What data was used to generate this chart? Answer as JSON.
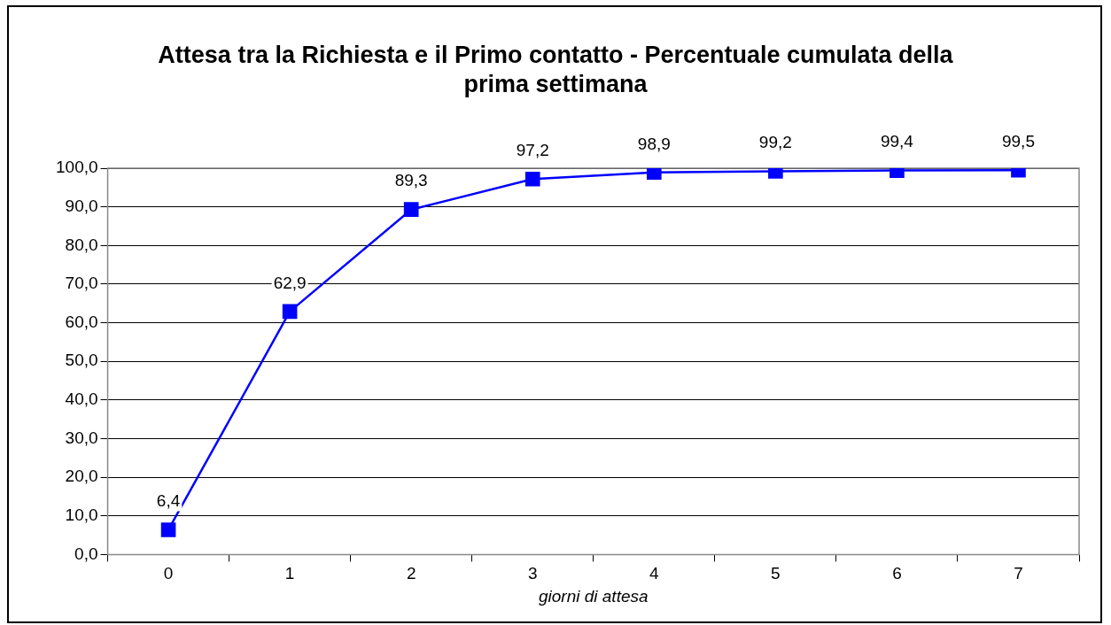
{
  "chart_data": {
    "type": "line",
    "title": "Attesa tra la Richiesta e il Primo contatto - Percentuale cumulata della prima settimana",
    "xlabel": "giorni di attesa",
    "categories": [
      "0",
      "1",
      "2",
      "3",
      "4",
      "5",
      "6",
      "7"
    ],
    "series": [
      {
        "color": "#0000ff",
        "values": [
          6.4,
          62.9,
          89.3,
          97.2,
          98.9,
          99.2,
          99.4,
          99.5
        ],
        "value_labels": [
          "6,4",
          "62,9",
          "89,3",
          "97,2",
          "98,9",
          "99,2",
          "99,4",
          "99,5"
        ]
      }
    ],
    "ylim": [
      0,
      100
    ],
    "yticks": [
      {
        "value": 0,
        "label": "0,0"
      },
      {
        "value": 10,
        "label": "10,0"
      },
      {
        "value": 20,
        "label": "20,0"
      },
      {
        "value": 30,
        "label": "30,0"
      },
      {
        "value": 40,
        "label": "40,0"
      },
      {
        "value": 50,
        "label": "50,0"
      },
      {
        "value": 60,
        "label": "60,0"
      },
      {
        "value": 70,
        "label": "70,0"
      },
      {
        "value": 80,
        "label": "80,0"
      },
      {
        "value": 90,
        "label": "90,0"
      },
      {
        "value": 100,
        "label": "100,0"
      }
    ],
    "grid": "y",
    "legend": false,
    "marker": "square",
    "line_style": "solid"
  }
}
